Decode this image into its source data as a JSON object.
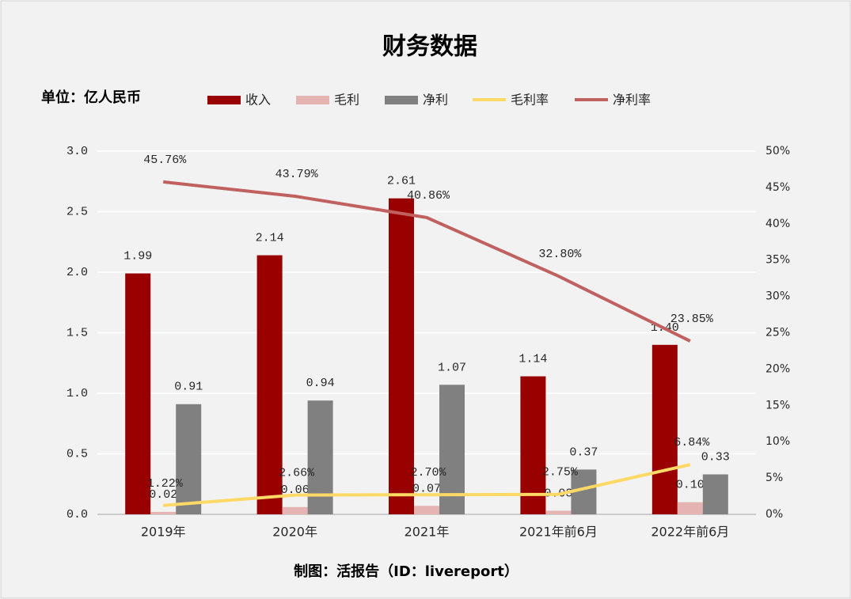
{
  "chart_data": {
    "type": "bar",
    "title": "财务数据",
    "unit_label": "单位：亿人民币",
    "footer": "制图：活报告（ID：livereport）",
    "categories": [
      "2019年",
      "2020年",
      "2021年",
      "2021年前6月",
      "2022年前6月"
    ],
    "ylim": [
      0,
      3
    ],
    "yticks": [
      {
        "value": 0,
        "label": "0.0"
      },
      0.5,
      {
        "value": 1,
        "label": "1.0"
      },
      1.5,
      {
        "value": 2,
        "label": "2.0"
      },
      2.5,
      {
        "value": 3,
        "label": "3.0"
      }
    ],
    "y2lim": [
      0,
      50
    ],
    "y2ticks": [
      {
        "value": 0,
        "label": "0%"
      },
      {
        "value": 5,
        "label": "5%"
      },
      {
        "value": 10,
        "label": "10%"
      },
      {
        "value": 15,
        "label": "15%"
      },
      {
        "value": 20,
        "label": "20%"
      },
      {
        "value": 25,
        "label": "25%"
      },
      {
        "value": 30,
        "label": "30%"
      },
      {
        "value": 35,
        "label": "35%"
      },
      {
        "value": 40,
        "label": "40%"
      },
      {
        "value": 45,
        "label": "45%"
      },
      {
        "value": 50,
        "label": "50%"
      }
    ],
    "grid": true,
    "series": [
      {
        "name": "收入",
        "type": "bar",
        "color": "#990000",
        "values": [
          1.99,
          2.14,
          2.61,
          1.14,
          1.4
        ],
        "value_labels": [
          "1.99",
          "2.14",
          "2.61",
          "1.14",
          "1.40"
        ]
      },
      {
        "name": "毛利",
        "type": "bar",
        "color": "#e6b3b3",
        "values": [
          0.02,
          0.06,
          0.07,
          0.03,
          0.1
        ],
        "value_labels": [
          "0.02",
          "0.06",
          "0.07",
          "0.03",
          "0.10"
        ]
      },
      {
        "name": "净利",
        "type": "bar",
        "color": "#808080",
        "values": [
          0.91,
          0.94,
          1.07,
          0.37,
          0.33
        ],
        "value_labels": [
          "0.91",
          "0.94",
          "1.07",
          "0.37",
          "0.33"
        ]
      },
      {
        "name": "毛利率",
        "type": "line",
        "axis": "y2",
        "color": "#ffd966",
        "values": [
          1.22,
          2.66,
          2.7,
          2.75,
          6.84
        ],
        "value_labels": [
          "1.22%",
          "2.66%",
          "2.70%",
          "2.75%",
          "6.84%"
        ]
      },
      {
        "name": "净利率",
        "type": "line",
        "axis": "y2",
        "color": "#c0605f",
        "values": [
          45.76,
          43.79,
          40.86,
          32.8,
          23.85
        ],
        "value_labels": [
          "45.76%",
          "43.79%",
          "40.86%",
          "32.80%",
          "23.85%"
        ]
      }
    ]
  }
}
